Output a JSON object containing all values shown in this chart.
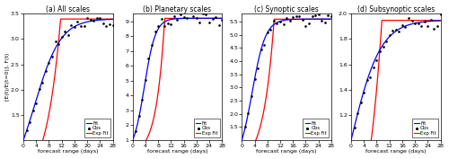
{
  "panels": [
    {
      "title": "(a) All scales",
      "ylim": [
        1.0,
        3.5
      ],
      "yticks": [
        1.5,
        2.0,
        2.5,
        3.0,
        3.5
      ],
      "sat": 3.4,
      "log_a": 3.4,
      "log_b": 0.072,
      "log_c": 1.0,
      "exp_lam": 0.22,
      "exp_t_cross": 11.0,
      "obs_seed": 12,
      "obs_noise": 0.018
    },
    {
      "title": "(b) Planetary scales",
      "ylim": [
        1.0,
        9.5
      ],
      "yticks": [
        1,
        2,
        3,
        4,
        5,
        6,
        7,
        8,
        9
      ],
      "sat": 9.2,
      "log_a": 9.2,
      "log_b": 0.062,
      "log_c": 1.0,
      "exp_lam": 0.38,
      "exp_t_cross": 10.0,
      "obs_seed": 13,
      "obs_noise": 0.03
    },
    {
      "title": "(c) Synoptic scales",
      "ylim": [
        1.0,
        5.8
      ],
      "yticks": [
        1.5,
        2.0,
        2.5,
        3.0,
        3.5,
        4.0,
        4.5,
        5.0,
        5.5
      ],
      "sat": 5.6,
      "log_a": 5.6,
      "log_b": 0.085,
      "log_c": 1.0,
      "exp_lam": 0.3,
      "exp_t_cross": 10.0,
      "obs_seed": 14,
      "obs_noise": 0.025
    },
    {
      "title": "(d) Subsynoptic scales",
      "ylim": [
        1.0,
        2.0
      ],
      "yticks": [
        1.2,
        1.4,
        1.6,
        1.8,
        2.0
      ],
      "sat": 1.95,
      "log_a": 1.95,
      "log_b": 0.11,
      "log_c": 1.0,
      "exp_lam": 0.2,
      "exp_t_cross": 9.0,
      "obs_seed": 15,
      "obs_noise": 0.018
    }
  ],
  "xlabel": "forecast range (days)",
  "ylabel": "[E(t)/E(t=0)], F(t)",
  "xlim": [
    0,
    28
  ],
  "xticks": [
    0,
    4,
    8,
    12,
    16,
    20,
    24,
    28
  ],
  "fit_color": "#0000ff",
  "exp_color": "#ff0000",
  "obs_color": "#000000"
}
